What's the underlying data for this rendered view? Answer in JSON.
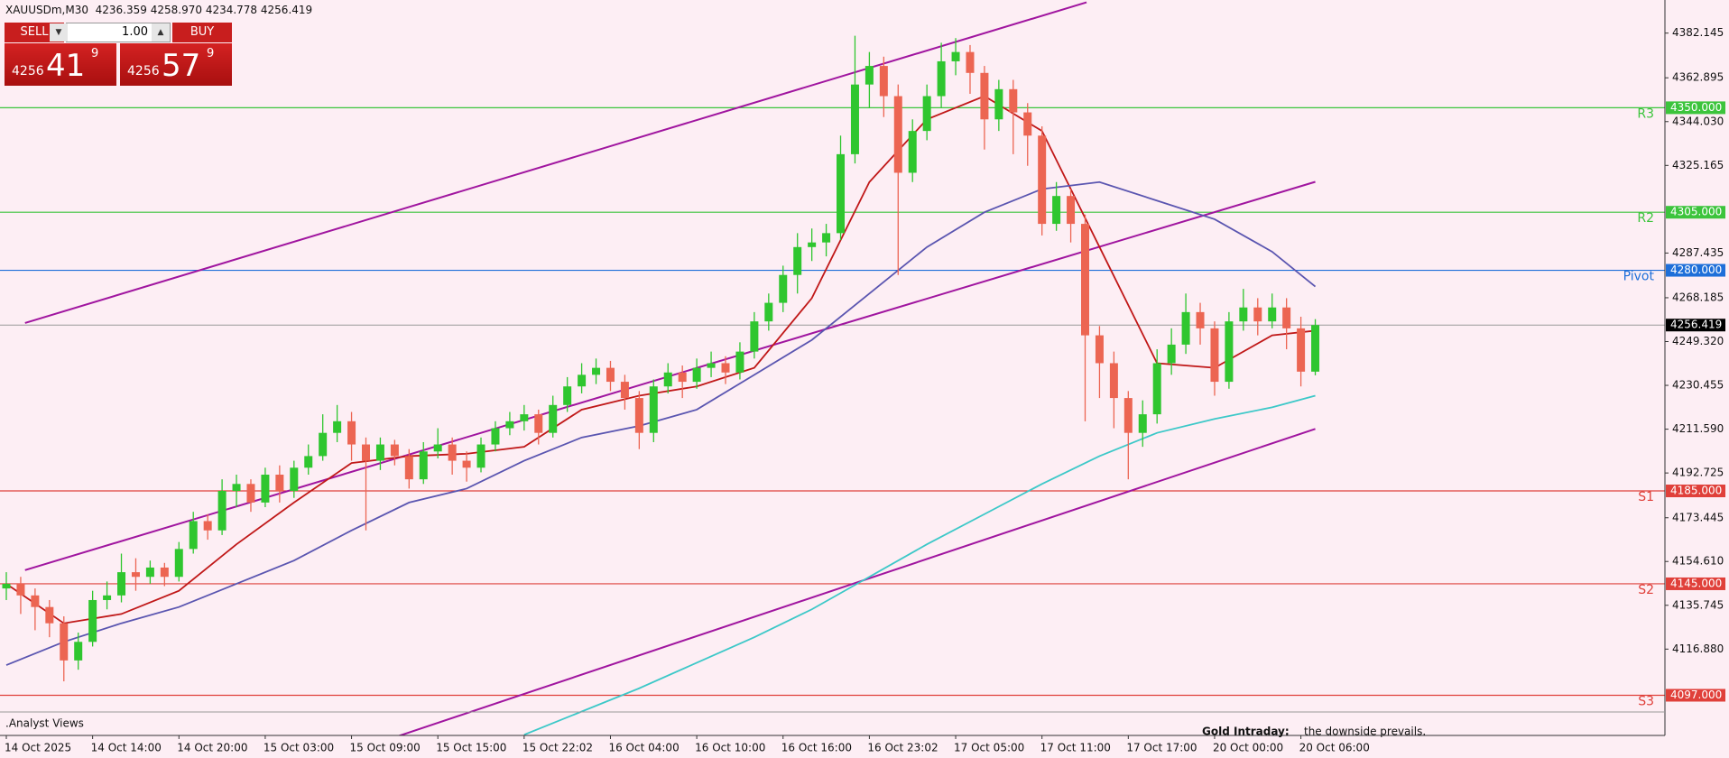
{
  "header": {
    "symbol": "XAUUSDm,M30",
    "quote": [
      "4236.359",
      "4258.970",
      "4234.778",
      "4256.419"
    ]
  },
  "trade_panel": {
    "sell": "SELL",
    "lot": "1.00",
    "buy": "BUY",
    "bid": {
      "big": "4256",
      "main": "41",
      "small": "9"
    },
    "ask": {
      "big": "4256",
      "main": "57",
      "small": "9"
    }
  },
  "footer": {
    "source": ".Analyst Views",
    "headline": "Gold Intraday:",
    "text": "the downside prevails."
  },
  "chart_data": {
    "type": "candlestick",
    "x_labels": [
      "14 Oct 2025",
      "14 Oct 14:00",
      "14 Oct 20:00",
      "15 Oct 03:00",
      "15 Oct 09:00",
      "15 Oct 15:00",
      "15 Oct 22:02",
      "16 Oct 04:00",
      "16 Oct 10:00",
      "16 Oct 16:00",
      "16 Oct 23:02",
      "17 Oct 05:00",
      "17 Oct 11:00",
      "17 Oct 17:00",
      "20 Oct 00:00",
      "20 Oct 06:00"
    ],
    "open": [
      4143,
      4145,
      4140,
      4135,
      4128,
      4112,
      4120,
      4138,
      4140,
      4150,
      4148,
      4152,
      4148,
      4160,
      4172,
      4168,
      4185,
      4188,
      4180,
      4192,
      4185,
      4195,
      4200,
      4210,
      4215,
      4205,
      4198,
      4205,
      4200,
      4190,
      4202,
      4205,
      4198,
      4195,
      4205,
      4212,
      4215,
      4218,
      4210,
      4222,
      4230,
      4235,
      4238,
      4232,
      4225,
      4210,
      4230,
      4236,
      4232,
      4238,
      4240,
      4236,
      4245,
      4258,
      4266,
      4278,
      4290,
      4292,
      4296,
      4330,
      4360,
      4368,
      4355,
      4322,
      4340,
      4355,
      4370,
      4374,
      4365,
      4345,
      4358,
      4348,
      4338,
      4300,
      4312,
      4300,
      4252,
      4240,
      4225,
      4210,
      4218,
      4240,
      4248,
      4262,
      4255,
      4232,
      4258,
      4264,
      4258,
      4264,
      4255,
      4236.359
    ],
    "high": [
      4150,
      4148,
      4143,
      4138,
      4131,
      4124,
      4142,
      4146,
      4158,
      4156,
      4155,
      4154,
      4163,
      4176,
      4175,
      4190,
      4192,
      4190,
      4195,
      4196,
      4198,
      4205,
      4218,
      4222,
      4219,
      4208,
      4208,
      4207,
      4203,
      4206,
      4212,
      4208,
      4202,
      4208,
      4215,
      4219,
      4222,
      4220,
      4226,
      4234,
      4240,
      4242,
      4241,
      4235,
      4228,
      4233,
      4240,
      4239,
      4242,
      4245,
      4243,
      4249,
      4262,
      4270,
      4282,
      4296,
      4298,
      4300,
      4338,
      4381,
      4374,
      4372,
      4360,
      4345,
      4360,
      4378,
      4380,
      4377,
      4368,
      4362,
      4362,
      4352,
      4342,
      4318,
      4315,
      4304,
      4256,
      4245,
      4228,
      4224,
      4246,
      4255,
      4270,
      4266,
      4258,
      4262,
      4272,
      4268,
      4270,
      4268,
      4260,
      4258.97
    ],
    "low": [
      4138,
      4132,
      4125,
      4122,
      4103,
      4108,
      4118,
      4134,
      4137,
      4142,
      4145,
      4144,
      4146,
      4158,
      4164,
      4166,
      4178,
      4176,
      4178,
      4180,
      4182,
      4192,
      4198,
      4206,
      4198,
      4168,
      4194,
      4196,
      4186,
      4188,
      4199,
      4192,
      4189,
      4193,
      4202,
      4209,
      4211,
      4205,
      4208,
      4219,
      4227,
      4231,
      4228,
      4220,
      4203,
      4206,
      4227,
      4225,
      4229,
      4234,
      4231,
      4233,
      4242,
      4254,
      4262,
      4270,
      4284,
      4286,
      4293,
      4326,
      4350,
      4346,
      4278,
      4318,
      4336,
      4350,
      4364,
      4356,
      4332,
      4340,
      4330,
      4325,
      4295,
      4297,
      4292,
      4215,
      4225,
      4212,
      4190,
      4204,
      4214,
      4235,
      4244,
      4248,
      4226,
      4229,
      4254,
      4252,
      4255,
      4246,
      4230,
      4234.778
    ],
    "close": [
      4145,
      4140,
      4135,
      4128,
      4112,
      4120,
      4138,
      4140,
      4150,
      4148,
      4152,
      4148,
      4160,
      4172,
      4168,
      4185,
      4188,
      4180,
      4192,
      4185,
      4195,
      4200,
      4210,
      4215,
      4205,
      4198,
      4205,
      4200,
      4190,
      4202,
      4205,
      4198,
      4195,
      4205,
      4212,
      4215,
      4218,
      4210,
      4222,
      4230,
      4235,
      4238,
      4232,
      4225,
      4210,
      4230,
      4236,
      4232,
      4238,
      4240,
      4236,
      4245,
      4258,
      4266,
      4278,
      4290,
      4292,
      4296,
      4330,
      4360,
      4368,
      4355,
      4322,
      4340,
      4355,
      4370,
      4374,
      4365,
      4345,
      4358,
      4348,
      4338,
      4300,
      4312,
      4300,
      4252,
      4240,
      4225,
      4210,
      4218,
      4240,
      4248,
      4262,
      4255,
      4232,
      4258,
      4264,
      4258,
      4264,
      4255,
      4236.359,
      4256.419
    ],
    "up_color": "#2fc62f",
    "down_color": "#ec6552",
    "ylim": [
      4079.7,
      4396.4
    ],
    "yticks": [
      4382.145,
      4362.895,
      {
        "value": 4344.03,
        "label": "4344.030"
      },
      4325.165,
      4287.435,
      4268.185,
      {
        "value": 4249.32,
        "label": "4249.320"
      },
      4230.455,
      {
        "value": 4211.59,
        "label": "4211.590"
      },
      4192.725,
      4173.445,
      {
        "value": 4154.61,
        "label": "4154.610"
      },
      4135.745,
      {
        "value": 4116.88,
        "label": "4116.880"
      }
    ],
    "series": [
      {
        "color": "#c01818",
        "x": [
          0,
          4,
          8,
          12,
          16,
          20,
          24,
          28,
          32,
          36,
          40,
          44,
          48,
          52,
          56,
          60,
          64,
          68,
          72,
          76,
          80,
          84,
          88,
          91
        ],
        "values": [
          4145,
          4128,
          4132,
          4142,
          4162,
          4180,
          4197,
          4200,
          4201,
          4204,
          4220,
          4226,
          4230,
          4238,
          4268,
          4318,
          4345,
          4355,
          4340,
          4290,
          4240,
          4238,
          4252,
          4254
        ]
      },
      {
        "color": "#5a55b0",
        "x": [
          0,
          4,
          8,
          12,
          16,
          20,
          24,
          28,
          32,
          36,
          40,
          44,
          48,
          52,
          56,
          60,
          64,
          68,
          72,
          76,
          80,
          84,
          88,
          91
        ],
        "values": [
          4110,
          4120,
          4128,
          4135,
          4145,
          4155,
          4168,
          4180,
          4186,
          4198,
          4208,
          4213,
          4220,
          4235,
          4250,
          4270,
          4290,
          4305,
          4315,
          4318,
          4310,
          4302,
          4288,
          4273
        ]
      },
      {
        "color": "#3cc8c8",
        "x": [
          36,
          40,
          44,
          48,
          52,
          56,
          60,
          64,
          68,
          72,
          76,
          80,
          84,
          88,
          91
        ],
        "values": [
          4080,
          4090,
          4100,
          4111,
          4122,
          4134,
          4148,
          4162,
          4175,
          4188,
          4200,
          4210,
          4216,
          4221,
          4226
        ]
      }
    ],
    "trendlines": [
      {
        "color": "#a0159f",
        "x": [
          1.3,
          75.1
        ],
        "y": [
          4257.3,
          4395.4
        ]
      },
      {
        "color": "#a0159f",
        "x": [
          1.3,
          91
        ],
        "y": [
          4150.9,
          4318.1
        ]
      },
      {
        "color": "#a0159f",
        "x": [
          25.6,
          91
        ],
        "y": [
          4076,
          4211.7
        ]
      }
    ],
    "levels": [
      {
        "name": "R3",
        "value": 4350,
        "label": "4350.000",
        "color": "#3cc43c"
      },
      {
        "name": "R2",
        "value": 4305,
        "label": "4305.000",
        "color": "#3cc43c"
      },
      {
        "name": "Pivot",
        "value": 4280,
        "label": "4280.000",
        "color": "#1e6fd9"
      },
      {
        "name": "S1",
        "value": 4185,
        "label": "4185.000",
        "color": "#e0403a"
      },
      {
        "name": "S2",
        "value": 4145,
        "label": "4145.000",
        "color": "#e0403a"
      },
      {
        "name": "S3",
        "value": 4097,
        "label": "4097.000",
        "color": "#e0403a"
      }
    ],
    "last_price": {
      "value": 4256.419,
      "label": "4256.419",
      "color": "#9a9a9a"
    }
  }
}
